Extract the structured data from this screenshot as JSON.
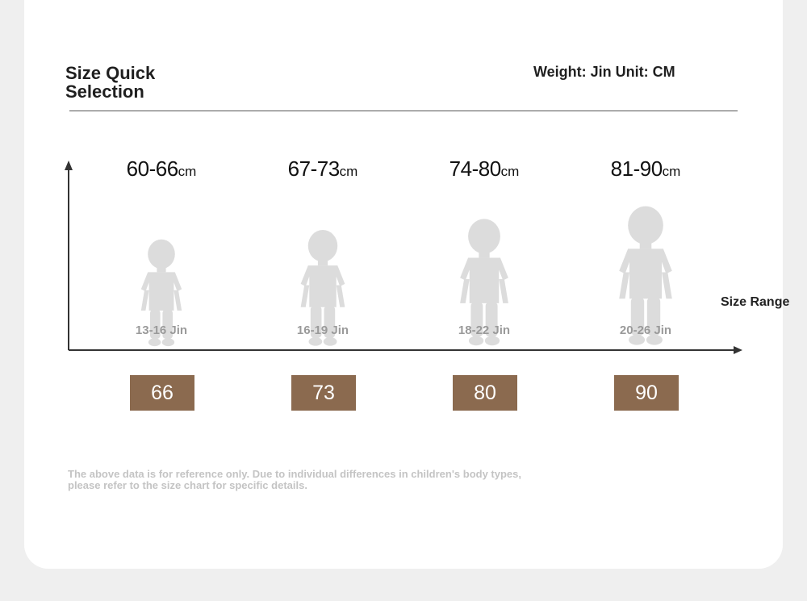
{
  "header": {
    "title": "Size Quick Selection",
    "weight_unit": "Weight: Jin Unit: CM"
  },
  "axis": {
    "x_label": "Size Range"
  },
  "columns": [
    {
      "height_range": "60-66",
      "height_unit": "cm",
      "weight": "13-16 Jin",
      "size": "66",
      "figure_icon": "child-silhouette-icon"
    },
    {
      "height_range": "67-73",
      "height_unit": "cm",
      "weight": "16-19 Jin",
      "size": "73",
      "figure_icon": "child-silhouette-icon"
    },
    {
      "height_range": "74-80",
      "height_unit": "cm",
      "weight": "18-22 Jin",
      "size": "80",
      "figure_icon": "child-silhouette-icon"
    },
    {
      "height_range": "81-90",
      "height_unit": "cm",
      "weight": "20-26 Jin",
      "size": "90",
      "figure_icon": "child-silhouette-icon"
    }
  ],
  "disclaimer": "The above data is for reference only. Due to individual differences in children's body types, please refer to the size chart for specific details.",
  "colors": {
    "size_box": "#8b6a4f",
    "figure": "#dcdcdc",
    "weight_text": "#9a9a9a",
    "disclaimer_text": "#c4c4c4"
  }
}
